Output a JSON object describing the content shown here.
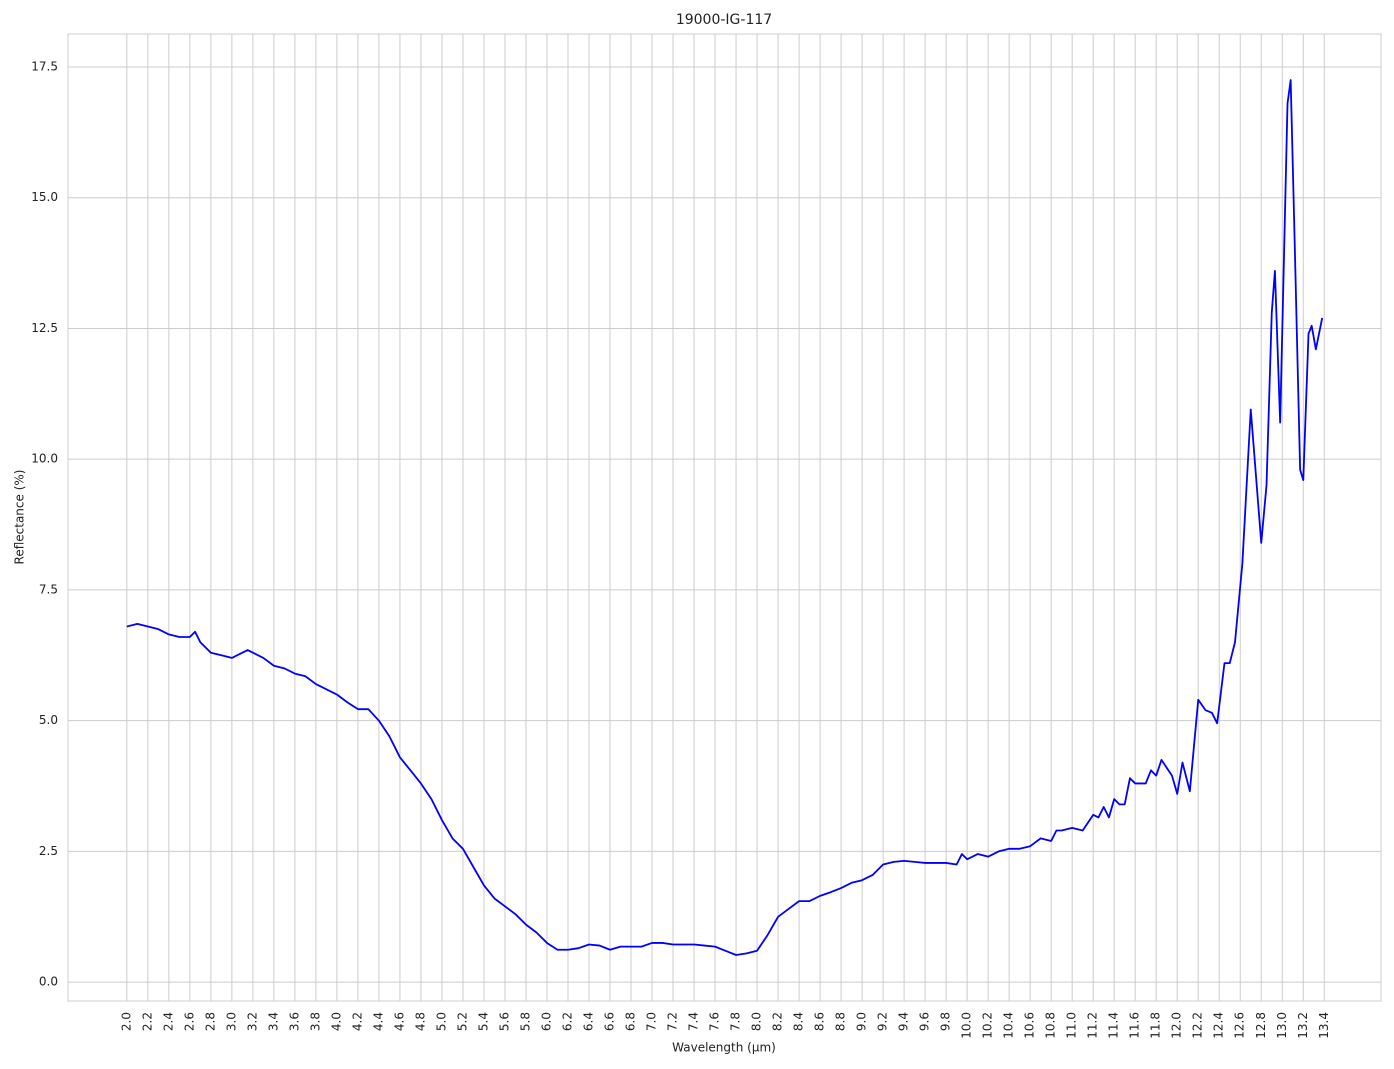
{
  "chart_data": {
    "type": "line",
    "title": "19000-IG-117",
    "x_label": "Wavelength (µm)",
    "y_label": "Reflectance (%)",
    "grid": true,
    "x": [
      2.0,
      2.1,
      2.2,
      2.3,
      2.4,
      2.5,
      2.6,
      2.65,
      2.7,
      2.8,
      2.9,
      3.0,
      3.1,
      3.15,
      3.2,
      3.3,
      3.4,
      3.5,
      3.6,
      3.7,
      3.8,
      3.9,
      4.0,
      4.1,
      4.2,
      4.3,
      4.4,
      4.5,
      4.6,
      4.7,
      4.8,
      4.9,
      5.0,
      5.1,
      5.2,
      5.3,
      5.4,
      5.5,
      5.6,
      5.7,
      5.8,
      5.9,
      6.0,
      6.1,
      6.2,
      6.3,
      6.4,
      6.5,
      6.6,
      6.7,
      6.8,
      6.9,
      7.0,
      7.1,
      7.2,
      7.3,
      7.4,
      7.5,
      7.6,
      7.7,
      7.8,
      7.9,
      8.0,
      8.1,
      8.2,
      8.3,
      8.4,
      8.5,
      8.6,
      8.7,
      8.8,
      8.9,
      9.0,
      9.1,
      9.2,
      9.3,
      9.4,
      9.5,
      9.6,
      9.7,
      9.8,
      9.9,
      9.95,
      10.0,
      10.1,
      10.2,
      10.3,
      10.4,
      10.5,
      10.6,
      10.7,
      10.8,
      10.85,
      10.9,
      11.0,
      11.1,
      11.2,
      11.25,
      11.3,
      11.35,
      11.4,
      11.45,
      11.5,
      11.55,
      11.6,
      11.7,
      11.75,
      11.8,
      11.85,
      11.95,
      12.0,
      12.05,
      12.12,
      12.2,
      12.27,
      12.33,
      12.38,
      12.45,
      12.5,
      12.55,
      12.62,
      12.7,
      12.8,
      12.85,
      12.9,
      12.93,
      12.98,
      13.05,
      13.08,
      13.12,
      13.17,
      13.2,
      13.25,
      13.28,
      13.32,
      13.38
    ],
    "series": [
      {
        "name": "19000-IG-117",
        "color": "#0000ff",
        "values": [
          6.8,
          6.85,
          6.8,
          6.75,
          6.65,
          6.6,
          6.6,
          6.7,
          6.5,
          6.3,
          6.25,
          6.2,
          6.3,
          6.35,
          6.3,
          6.2,
          6.05,
          6.0,
          5.9,
          5.85,
          5.7,
          5.6,
          5.5,
          5.35,
          5.22,
          5.22,
          5.0,
          4.7,
          4.3,
          4.05,
          3.8,
          3.5,
          3.1,
          2.75,
          2.55,
          2.2,
          1.85,
          1.6,
          1.45,
          1.3,
          1.1,
          0.95,
          0.75,
          0.62,
          0.62,
          0.65,
          0.72,
          0.7,
          0.62,
          0.68,
          0.68,
          0.68,
          0.75,
          0.75,
          0.72,
          0.72,
          0.72,
          0.7,
          0.68,
          0.6,
          0.52,
          0.55,
          0.6,
          0.9,
          1.25,
          1.4,
          1.55,
          1.55,
          1.65,
          1.72,
          1.8,
          1.9,
          1.95,
          2.05,
          2.25,
          2.3,
          2.32,
          2.3,
          2.28,
          2.28,
          2.28,
          2.25,
          2.45,
          2.35,
          2.45,
          2.4,
          2.5,
          2.55,
          2.55,
          2.6,
          2.75,
          2.7,
          2.9,
          2.9,
          2.95,
          2.9,
          3.2,
          3.15,
          3.35,
          3.15,
          3.5,
          3.4,
          3.4,
          3.9,
          3.8,
          3.8,
          4.05,
          3.95,
          4.25,
          3.95,
          3.6,
          4.2,
          3.65,
          5.4,
          5.2,
          5.15,
          4.95,
          6.1,
          6.1,
          6.5,
          8.0,
          10.95,
          8.4,
          9.5,
          12.8,
          13.6,
          10.7,
          16.8,
          17.25,
          14.0,
          9.8,
          9.6,
          12.4,
          12.55,
          12.1,
          12.7
        ]
      }
    ],
    "xlim": [
      1.44,
      13.94
    ],
    "ylim": [
      -0.36,
      18.13
    ],
    "yticks": [
      {
        "value": 0,
        "label": "0.0"
      },
      {
        "value": 2.5,
        "label": "2.5"
      },
      {
        "value": 5,
        "label": "5.0"
      },
      {
        "value": 7.5,
        "label": "7.5"
      },
      {
        "value": 10,
        "label": "10.0"
      },
      {
        "value": 12.5,
        "label": "12.5"
      },
      {
        "value": 15,
        "label": "15.0"
      },
      {
        "value": 17.5,
        "label": "17.5"
      }
    ],
    "xticks": [
      {
        "value": 2,
        "label": "2.0"
      },
      {
        "value": 2.2,
        "label": "2.2"
      },
      {
        "value": 2.4,
        "label": "2.4"
      },
      {
        "value": 2.6,
        "label": "2.6"
      },
      {
        "value": 2.8,
        "label": "2.8"
      },
      {
        "value": 3,
        "label": "3.0"
      },
      {
        "value": 3.2,
        "label": "3.2"
      },
      {
        "value": 3.4,
        "label": "3.4"
      },
      {
        "value": 3.6,
        "label": "3.6"
      },
      {
        "value": 3.8,
        "label": "3.8"
      },
      {
        "value": 4,
        "label": "4.0"
      },
      {
        "value": 4.2,
        "label": "4.2"
      },
      {
        "value": 4.4,
        "label": "4.4"
      },
      {
        "value": 4.6,
        "label": "4.6"
      },
      {
        "value": 4.8,
        "label": "4.8"
      },
      {
        "value": 5,
        "label": "5.0"
      },
      {
        "value": 5.2,
        "label": "5.2"
      },
      {
        "value": 5.4,
        "label": "5.4"
      },
      {
        "value": 5.6,
        "label": "5.6"
      },
      {
        "value": 5.8,
        "label": "5.8"
      },
      {
        "value": 6,
        "label": "6.0"
      },
      {
        "value": 6.2,
        "label": "6.2"
      },
      {
        "value": 6.4,
        "label": "6.4"
      },
      {
        "value": 6.6,
        "label": "6.6"
      },
      {
        "value": 6.8,
        "label": "6.8"
      },
      {
        "value": 7,
        "label": "7.0"
      },
      {
        "value": 7.2,
        "label": "7.2"
      },
      {
        "value": 7.4,
        "label": "7.4"
      },
      {
        "value": 7.6,
        "label": "7.6"
      },
      {
        "value": 7.8,
        "label": "7.8"
      },
      {
        "value": 8,
        "label": "8.0"
      },
      {
        "value": 8.2,
        "label": "8.2"
      },
      {
        "value": 8.4,
        "label": "8.4"
      },
      {
        "value": 8.6,
        "label": "8.6"
      },
      {
        "value": 8.8,
        "label": "8.8"
      },
      {
        "value": 9,
        "label": "9.0"
      },
      {
        "value": 9.2,
        "label": "9.2"
      },
      {
        "value": 9.4,
        "label": "9.4"
      },
      {
        "value": 9.6,
        "label": "9.6"
      },
      {
        "value": 9.8,
        "label": "9.8"
      },
      {
        "value": 10,
        "label": "10.0"
      },
      {
        "value": 10.2,
        "label": "10.2"
      },
      {
        "value": 10.4,
        "label": "10.4"
      },
      {
        "value": 10.6,
        "label": "10.6"
      },
      {
        "value": 10.8,
        "label": "10.8"
      },
      {
        "value": 11,
        "label": "11.0"
      },
      {
        "value": 11.2,
        "label": "11.2"
      },
      {
        "value": 11.4,
        "label": "11.4"
      },
      {
        "value": 11.6,
        "label": "11.6"
      },
      {
        "value": 11.8,
        "label": "11.8"
      },
      {
        "value": 12,
        "label": "12.0"
      },
      {
        "value": 12.2,
        "label": "12.2"
      },
      {
        "value": 12.4,
        "label": "12.4"
      },
      {
        "value": 12.6,
        "label": "12.6"
      },
      {
        "value": 12.8,
        "label": "12.8"
      },
      {
        "value": 13,
        "label": "13.0"
      },
      {
        "value": 13.2,
        "label": "13.2"
      },
      {
        "value": 13.4,
        "label": "13.4"
      }
    ]
  }
}
